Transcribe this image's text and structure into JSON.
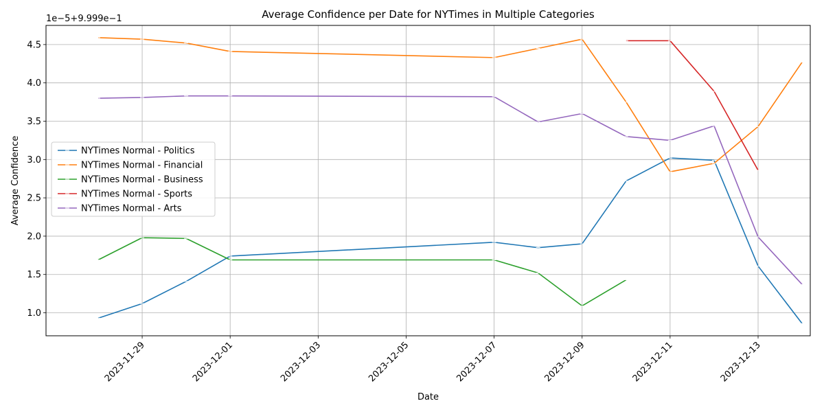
{
  "chart_data": {
    "type": "line",
    "title": "Average Confidence per Date for NYTimes in Multiple Categories",
    "xlabel": "Date",
    "ylabel": "Average Confidence",
    "y_offset_label": "1e−5+9.999e−1",
    "xlim": [
      "2023-11-27",
      "2023-12-14"
    ],
    "ylim": [
      0.7,
      4.75
    ],
    "y_ticks": [
      "1.0",
      "1.5",
      "2.0",
      "2.5",
      "3.0",
      "3.5",
      "4.0",
      "4.5"
    ],
    "y_tick_values": [
      1.0,
      1.5,
      2.0,
      2.5,
      3.0,
      3.5,
      4.0,
      4.5
    ],
    "x_ticks": [
      "2023-11-29",
      "2023-12-01",
      "2023-12-03",
      "2023-12-05",
      "2023-12-07",
      "2023-12-09",
      "2023-12-11",
      "2023-12-13"
    ],
    "grid": true,
    "legend_position": "center-left",
    "series": [
      {
        "name": "NYTimes Normal - Politics",
        "color": "#1f77b4",
        "points": [
          {
            "x": "2023-11-28",
            "y": 0.93
          },
          {
            "x": "2023-11-29",
            "y": 1.12
          },
          {
            "x": "2023-11-30",
            "y": 1.41
          },
          {
            "x": "2023-12-01",
            "y": 1.74
          },
          {
            "x": "2023-12-07",
            "y": 1.92
          },
          {
            "x": "2023-12-08",
            "y": 1.85
          },
          {
            "x": "2023-12-09",
            "y": 1.9
          },
          {
            "x": "2023-12-10",
            "y": 2.72
          },
          {
            "x": "2023-12-11",
            "y": 3.02
          },
          {
            "x": "2023-12-12",
            "y": 2.99
          },
          {
            "x": "2023-12-13",
            "y": 1.61
          },
          {
            "x": "2023-12-14",
            "y": 0.86
          }
        ]
      },
      {
        "name": "NYTimes Normal - Financial",
        "color": "#ff7f0e",
        "points": [
          {
            "x": "2023-11-28",
            "y": 4.59
          },
          {
            "x": "2023-11-29",
            "y": 4.57
          },
          {
            "x": "2023-11-30",
            "y": 4.52
          },
          {
            "x": "2023-12-01",
            "y": 4.41
          },
          {
            "x": "2023-12-07",
            "y": 4.33
          },
          {
            "x": "2023-12-08",
            "y": 4.45
          },
          {
            "x": "2023-12-09",
            "y": 4.57
          },
          {
            "x": "2023-12-10",
            "y": 3.75
          },
          {
            "x": "2023-12-11",
            "y": 2.84
          },
          {
            "x": "2023-12-12",
            "y": 2.95
          },
          {
            "x": "2023-12-13",
            "y": 3.43
          },
          {
            "x": "2023-12-14",
            "y": 4.27
          }
        ]
      },
      {
        "name": "NYTimes Normal - Business",
        "color": "#2ca02c",
        "points": [
          {
            "x": "2023-11-28",
            "y": 1.69
          },
          {
            "x": "2023-11-29",
            "y": 1.98
          },
          {
            "x": "2023-11-30",
            "y": 1.97
          },
          {
            "x": "2023-12-01",
            "y": 1.69
          },
          {
            "x": "2023-12-07",
            "y": 1.69
          },
          {
            "x": "2023-12-08",
            "y": 1.52
          },
          {
            "x": "2023-12-09",
            "y": 1.09
          },
          {
            "x": "2023-12-10",
            "y": 1.43
          }
        ]
      },
      {
        "name": "NYTimes Normal - Sports",
        "color": "#d62728",
        "points": [
          {
            "x": "2023-12-10",
            "y": 4.55
          },
          {
            "x": "2023-12-11",
            "y": 4.55
          },
          {
            "x": "2023-12-12",
            "y": 3.89
          },
          {
            "x": "2023-12-13",
            "y": 2.86
          }
        ]
      },
      {
        "name": "NYTimes Normal - Arts",
        "color": "#9467bd",
        "points": [
          {
            "x": "2023-11-28",
            "y": 3.8
          },
          {
            "x": "2023-11-29",
            "y": 3.81
          },
          {
            "x": "2023-11-30",
            "y": 3.83
          },
          {
            "x": "2023-12-01",
            "y": 3.83
          },
          {
            "x": "2023-12-07",
            "y": 3.82
          },
          {
            "x": "2023-12-08",
            "y": 3.49
          },
          {
            "x": "2023-12-09",
            "y": 3.6
          },
          {
            "x": "2023-12-10",
            "y": 3.3
          },
          {
            "x": "2023-12-11",
            "y": 3.25
          },
          {
            "x": "2023-12-12",
            "y": 3.44
          },
          {
            "x": "2023-12-13",
            "y": 1.99
          },
          {
            "x": "2023-12-14",
            "y": 1.37
          }
        ]
      }
    ]
  }
}
